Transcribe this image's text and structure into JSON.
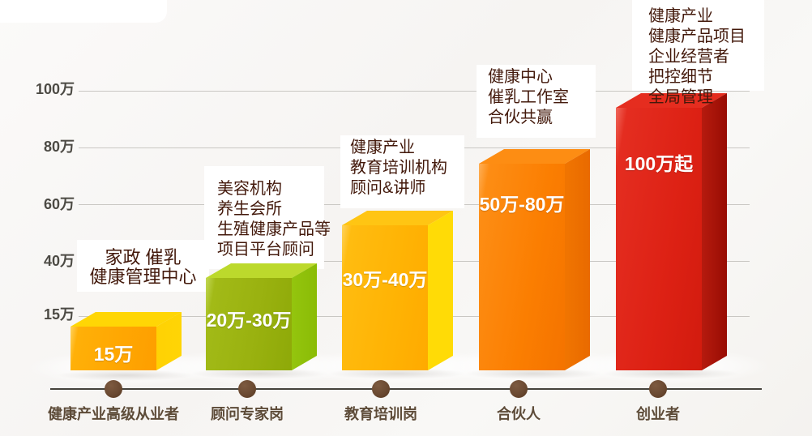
{
  "chart_data": {
    "type": "bar",
    "title": "",
    "xlabel": "",
    "ylabel": "",
    "grid": true,
    "legend": false,
    "y_axis": {
      "ticks": [
        "100万",
        "80万",
        "60万",
        "40万",
        "15万"
      ],
      "tick_values_wan": [
        100,
        80,
        60,
        40,
        15
      ]
    },
    "bars": [
      {
        "category": "健康产业高级从业者",
        "value_label": "15万",
        "min_wan": 15,
        "max_wan": 15,
        "color": "#ffa702",
        "annotation": [
          "家政 催乳",
          "健康管理中心"
        ]
      },
      {
        "category": "顾问专家岗",
        "value_label": "20万-30万",
        "min_wan": 20,
        "max_wan": 30,
        "color": "#99b10f",
        "annotation": [
          "美容机构",
          "养生会所",
          "生殖健康产品等",
          "项目平台顾问"
        ]
      },
      {
        "category": "教育培训岗",
        "value_label": "30万-40万",
        "min_wan": 30,
        "max_wan": 40,
        "color": "#ffb304",
        "annotation": [
          "健康产业",
          "教育培训机构",
          "顾问&讲师"
        ]
      },
      {
        "category": "合伙人",
        "value_label": "50万-80万",
        "min_wan": 50,
        "max_wan": 80,
        "color": "#fb7e01",
        "annotation": [
          "健康中心",
          "催乳工作室",
          "合伙共赢"
        ]
      },
      {
        "category": "创业者",
        "value_label": "100万起",
        "min_wan": 100,
        "max_wan": null,
        "color": "#dd2114",
        "annotation": [
          "健康产业",
          "健康产品项目",
          "企业经营者",
          "把控细节",
          "全局管理"
        ]
      }
    ],
    "colors": {
      "grid_line": "#c9c7c3",
      "axis_line": "#45423b",
      "axis_dot": "#6b4a32",
      "annotation_text": "#43190b",
      "y_tick_text": "#4c4a44",
      "x_tick_text": "#5d4b38",
      "bar_value_text": "#ffffff"
    }
  }
}
